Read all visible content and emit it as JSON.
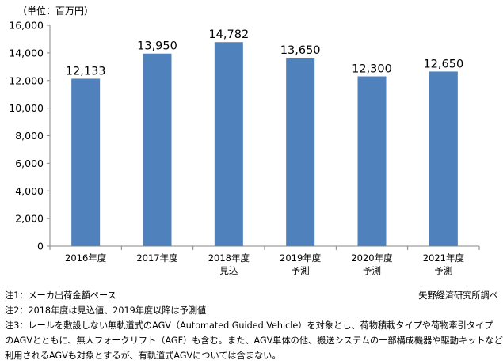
{
  "chart_data": {
    "type": "bar",
    "unit_label": "（単位：百万円）",
    "categories": [
      [
        "2016年度"
      ],
      [
        "2017年度"
      ],
      [
        "2018年度",
        "見込"
      ],
      [
        "2019年度",
        "予測"
      ],
      [
        "2020年度",
        "予測"
      ],
      [
        "2021年度",
        "予測"
      ]
    ],
    "values": [
      12133,
      13950,
      14782,
      13650,
      12300,
      12650
    ],
    "value_labels": [
      "12,133",
      "13,950",
      "14,782",
      "13,650",
      "12,300",
      "12,650"
    ],
    "ylim": [
      0,
      16000
    ],
    "yticks": [
      0,
      2000,
      4000,
      6000,
      8000,
      10000,
      12000,
      14000,
      16000
    ],
    "ytick_labels": [
      "0",
      "2,000",
      "4,000",
      "6,000",
      "8,000",
      "10,000",
      "12,000",
      "14,000",
      "16,000"
    ],
    "bar_color": "#4F81BD",
    "grid": false
  },
  "notes": {
    "note1": "注1：メーカ出荷金額ベース",
    "source": "矢野経済研究所調べ",
    "note2": "注2：2018年度は見込値、2019年度以降は予測値",
    "note3_line1": "注3：レールを敷設しない無軌道式のAGV（Automated Guided Vehicle）を対象とし、荷物積載タイプや荷物牽引タイプ",
    "note3_line2": "のAGVとともに、無人フォークリフト（AGF）も含む。また、AGV単体の他、搬送システムの一部構成機器や駆動キットなどで",
    "note3_line3": "利用されるAGVも対象とするが、有軌道式AGVについては含まない。"
  }
}
